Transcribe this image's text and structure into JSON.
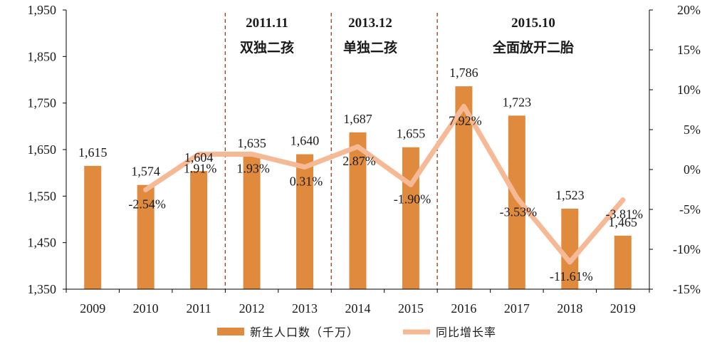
{
  "chart_data": {
    "type": "bar",
    "categories": [
      "2009",
      "2010",
      "2011",
      "2012",
      "2013",
      "2014",
      "2015",
      "2016",
      "2017",
      "2018",
      "2019"
    ],
    "series": [
      {
        "name": "新生人口数（千万）",
        "type": "bar",
        "axis": "left",
        "values": [
          1615,
          1574,
          1604,
          1635,
          1640,
          1687,
          1655,
          1786,
          1723,
          1523,
          1465
        ],
        "labels": [
          "1,615",
          "1,574",
          "1,604",
          "1,635",
          "1,640",
          "1,687",
          "1,655",
          "1,786",
          "1,723",
          "1,523",
          "1,465"
        ],
        "color": "#E08A3E"
      },
      {
        "name": "同比增长率",
        "type": "line",
        "axis": "right",
        "values": [
          null,
          -2.54,
          1.91,
          1.93,
          0.31,
          2.87,
          -1.9,
          7.92,
          -3.53,
          -11.61,
          -3.81
        ],
        "labels": [
          "",
          "-2.54%",
          "1.91%",
          "1.93%",
          "0.31%",
          "2.87%",
          "-1.90%",
          "7.92%",
          "-3.53%",
          "-11.61%",
          "-3.81%"
        ],
        "color": "#F5B995"
      }
    ],
    "y_left": {
      "min": 1350,
      "max": 1950,
      "ticks": [
        1350,
        1450,
        1550,
        1650,
        1750,
        1850,
        1950
      ],
      "tick_labels": [
        "1,350",
        "1,450",
        "1,550",
        "1,650",
        "1,750",
        "1,850",
        "1,950"
      ]
    },
    "y_right": {
      "min": -15,
      "max": 20,
      "ticks": [
        -15,
        -10,
        -5,
        0,
        5,
        10,
        15,
        20
      ],
      "tick_labels": [
        "-15%",
        "-10%",
        "-5%",
        "0%",
        "5%",
        "10%",
        "15%",
        "20%"
      ]
    },
    "annotations": [
      {
        "between": [
          "2011",
          "2012"
        ],
        "date": "2011.11",
        "text": "双独二孩"
      },
      {
        "between": [
          "2013",
          "2014"
        ],
        "date": "2013.12",
        "text": "单独二孩"
      },
      {
        "between": [
          "2015",
          "2016"
        ],
        "date": "2015.10",
        "text": "全面放开二胎"
      }
    ],
    "legend_position": "bottom",
    "grid": false
  }
}
